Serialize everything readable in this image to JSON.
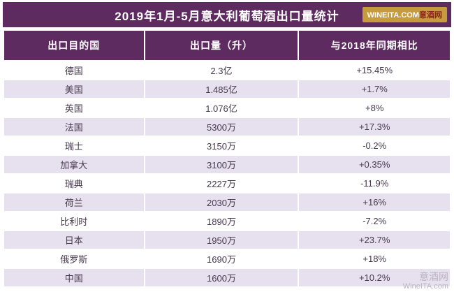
{
  "title": "2019年1月-5月意大利葡萄酒出口量统计",
  "logo": {
    "text_en": "WINEITA.COM",
    "text_cn": "意酒网"
  },
  "watermark": {
    "line1": "意酒网",
    "line2": "WineITA.com"
  },
  "colors": {
    "purple": "#5e2b60",
    "row_alt": "#e6e0ef",
    "logo_gold": "#c79a3e",
    "logo_cn_red": "#8e2420",
    "body_text": "#46394d",
    "watermark_gray": "#b9b2bc"
  },
  "chart_data": {
    "type": "table",
    "title": "2019年1月-5月意大利葡萄酒出口量统计",
    "columns": [
      "出口目的国",
      "出口量（升）",
      "与2018年同期相比"
    ],
    "rows": [
      [
        "德国",
        "2.3亿",
        "+15.45%"
      ],
      [
        "美国",
        "1.485亿",
        "+1.7%"
      ],
      [
        "英国",
        "1.076亿",
        "+8%"
      ],
      [
        "法国",
        "5300万",
        "+17.3%"
      ],
      [
        "瑞士",
        "3150万",
        "-0.2%"
      ],
      [
        "加拿大",
        "3100万",
        "+0.35%"
      ],
      [
        "瑞典",
        "2227万",
        "-11.9%"
      ],
      [
        "荷兰",
        "2030万",
        "+16%"
      ],
      [
        "比利时",
        "1890万",
        "-7.2%"
      ],
      [
        "日本",
        "1950万",
        "+23.7%"
      ],
      [
        "俄罗斯",
        "1690万",
        "+18%"
      ],
      [
        "中国",
        "1600万",
        "+10.2%"
      ]
    ]
  }
}
